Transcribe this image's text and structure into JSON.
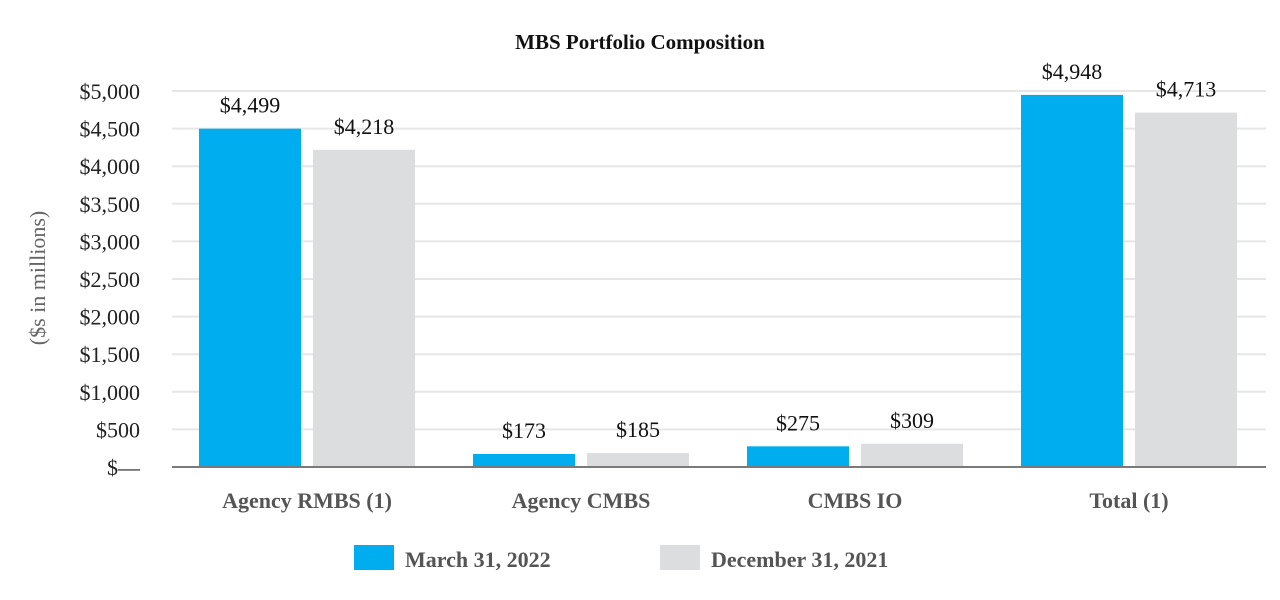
{
  "chart_data": {
    "type": "bar",
    "title": "MBS Portfolio Composition",
    "ylabel": "($s in millions)",
    "xlabel": "",
    "categories": [
      "Agency RMBS (1)",
      "Agency CMBS",
      "CMBS IO",
      "Total (1)"
    ],
    "series": [
      {
        "name": "March 31, 2022",
        "color": "#00aeef",
        "values": [
          4499,
          173,
          275,
          4948
        ],
        "labels": [
          "$4,499",
          "$173",
          "$275",
          "$4,948"
        ]
      },
      {
        "name": "December 31, 2021",
        "color": "#dcdddf",
        "values": [
          4218,
          185,
          309,
          4713
        ],
        "labels": [
          "$4,218",
          "$185",
          "$309",
          "$4,713"
        ]
      }
    ],
    "ylim": [
      0,
      5000
    ],
    "yticks": [
      0,
      500,
      1000,
      1500,
      2000,
      2500,
      3000,
      3500,
      4000,
      4500,
      5000
    ],
    "ytick_labels": [
      "$—",
      "$500",
      "$1,000",
      "$1,500",
      "$2,000",
      "$2,500",
      "$3,000",
      "$3,500",
      "$4,000",
      "$4,500",
      "$5,000"
    ],
    "grid": true,
    "legend_position": "bottom-center"
  }
}
